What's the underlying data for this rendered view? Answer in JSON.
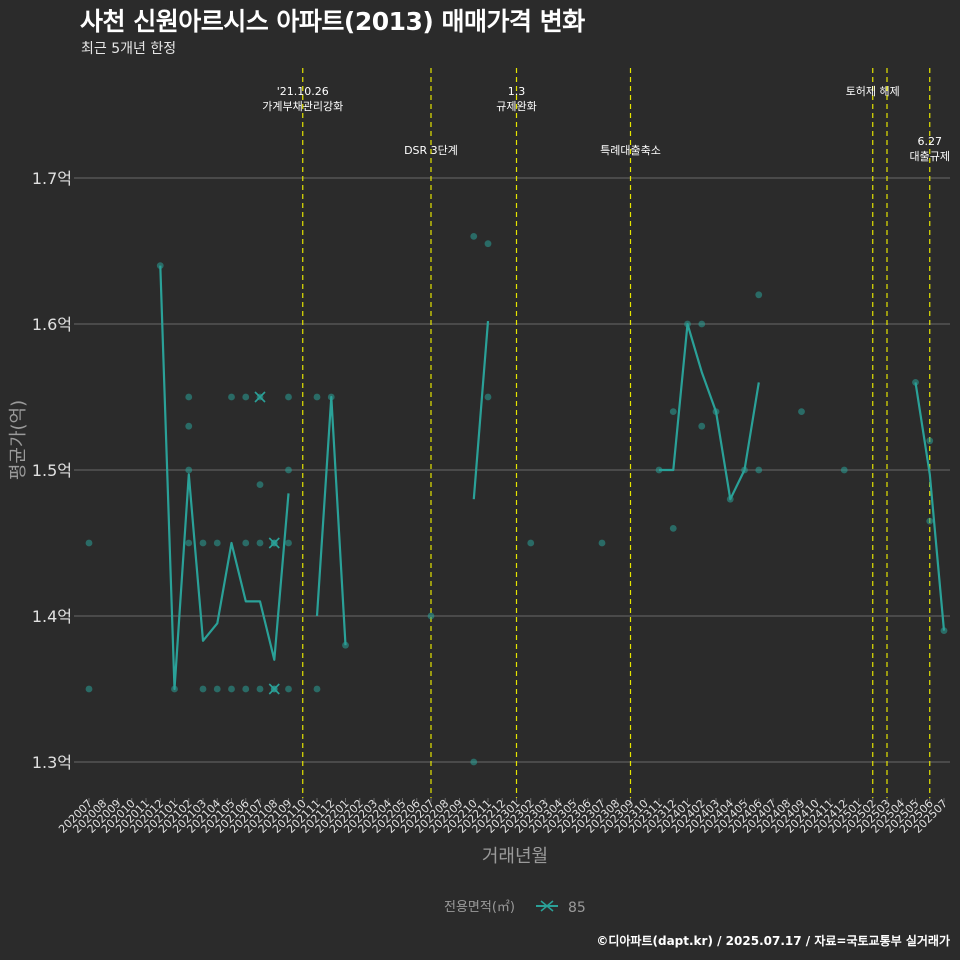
{
  "header": {
    "title": "사천 신원아르시스 아파트(2013) 매매가격 변화",
    "subtitle": "최근 5개년 한정"
  },
  "footer": {
    "caption": "©디아파트(dapt.kr) / 2025.07.17 / 자료=국토교통부 실거래가"
  },
  "colors": {
    "background": "#2b2b2b",
    "series": "#2aa198",
    "event_line": "#e5e500",
    "grid": "#6a6a6a",
    "axis_text": "#e0e0e0",
    "axis_title": "#9a9a9a"
  },
  "chart_data": {
    "type": "line",
    "xlabel": "거래년월",
    "ylabel": "평균가(억)",
    "ylim": [
      1.28,
      1.86
    ],
    "grid": "horizontal",
    "yticks": [
      {
        "value": 1.3,
        "label": "1.3억"
      },
      {
        "value": 1.4,
        "label": "1.4억"
      },
      {
        "value": 1.5,
        "label": "1.5억"
      },
      {
        "value": 1.6,
        "label": "1.6억"
      },
      {
        "value": 1.7,
        "label": "1.7억"
      }
    ],
    "categories": [
      "202007",
      "202008",
      "202009",
      "202010",
      "202011",
      "202012",
      "202101",
      "202102",
      "202103",
      "202104",
      "202105",
      "202106",
      "202107",
      "202108",
      "202109",
      "202110",
      "202111",
      "202112",
      "202201",
      "202202",
      "202203",
      "202204",
      "202205",
      "202206",
      "202207",
      "202208",
      "202209",
      "202210",
      "202211",
      "202212",
      "202301",
      "202302",
      "202303",
      "202304",
      "202305",
      "202306",
      "202307",
      "202308",
      "202309",
      "202310",
      "202311",
      "202312",
      "202401",
      "202402",
      "202403",
      "202404",
      "202405",
      "202406",
      "202407",
      "202408",
      "202409",
      "202410",
      "202411",
      "202412",
      "202501",
      "202502",
      "202503",
      "202504",
      "202505",
      "202506",
      "202507"
    ],
    "legend": {
      "title": "전용면적(㎡)",
      "entries": [
        "85"
      ],
      "position": "bottom"
    },
    "series": [
      {
        "name": "85",
        "line": [
          {
            "x": "202012",
            "y": 1.64
          },
          {
            "x": "202101",
            "y": 1.35
          },
          {
            "x": "202102",
            "y": 1.497
          },
          {
            "x": "202103",
            "y": 1.383
          },
          {
            "x": "202104",
            "y": 1.395
          },
          {
            "x": "202105",
            "y": 1.45
          },
          {
            "x": "202106",
            "y": 1.41
          },
          {
            "x": "202107",
            "y": 1.41
          },
          {
            "x": "202108",
            "y": 1.37
          },
          {
            "x": "202109",
            "y": 1.484
          },
          null,
          {
            "x": "202111",
            "y": 1.4
          },
          {
            "x": "202112",
            "y": 1.55
          },
          {
            "x": "202201",
            "y": 1.38
          },
          null,
          {
            "x": "202210",
            "y": 1.48
          },
          {
            "x": "202211",
            "y": 1.602
          },
          null,
          {
            "x": "202311",
            "y": 1.5
          },
          {
            "x": "202312",
            "y": 1.5
          },
          {
            "x": "202401",
            "y": 1.6
          },
          {
            "x": "202402",
            "y": 1.567
          },
          {
            "x": "202403",
            "y": 1.54
          },
          {
            "x": "202404",
            "y": 1.48
          },
          {
            "x": "202405",
            "y": 1.5
          },
          {
            "x": "202406",
            "y": 1.56
          },
          null,
          {
            "x": "202505",
            "y": 1.56
          },
          {
            "x": "202506",
            "y": 1.497
          },
          {
            "x": "202507",
            "y": 1.39
          }
        ],
        "points": [
          {
            "x": "202007",
            "y": 1.45
          },
          {
            "x": "202007",
            "y": 1.35
          },
          {
            "x": "202012",
            "y": 1.64
          },
          {
            "x": "202101",
            "y": 1.35
          },
          {
            "x": "202102",
            "y": 1.55
          },
          {
            "x": "202102",
            "y": 1.53
          },
          {
            "x": "202102",
            "y": 1.5
          },
          {
            "x": "202102",
            "y": 1.45
          },
          {
            "x": "202103",
            "y": 1.45
          },
          {
            "x": "202103",
            "y": 1.35
          },
          {
            "x": "202104",
            "y": 1.45
          },
          {
            "x": "202104",
            "y": 1.35
          },
          {
            "x": "202105",
            "y": 1.55
          },
          {
            "x": "202105",
            "y": 1.35
          },
          {
            "x": "202106",
            "y": 1.55
          },
          {
            "x": "202106",
            "y": 1.45
          },
          {
            "x": "202106",
            "y": 1.35
          },
          {
            "x": "202107",
            "y": 1.49
          },
          {
            "x": "202107",
            "y": 1.45
          },
          {
            "x": "202107",
            "y": 1.35
          },
          {
            "x": "202108",
            "y": 1.45
          },
          {
            "x": "202108",
            "y": 1.35
          },
          {
            "x": "202109",
            "y": 1.55
          },
          {
            "x": "202109",
            "y": 1.5
          },
          {
            "x": "202109",
            "y": 1.45
          },
          {
            "x": "202109",
            "y": 1.35
          },
          {
            "x": "202111",
            "y": 1.55
          },
          {
            "x": "202111",
            "y": 1.35
          },
          {
            "x": "202112",
            "y": 1.55
          },
          {
            "x": "202201",
            "y": 1.38
          },
          {
            "x": "202207",
            "y": 1.4
          },
          {
            "x": "202210",
            "y": 1.66
          },
          {
            "x": "202210",
            "y": 1.3
          },
          {
            "x": "202211",
            "y": 1.655
          },
          {
            "x": "202211",
            "y": 1.55
          },
          {
            "x": "202302",
            "y": 1.45
          },
          {
            "x": "202307",
            "y": 1.45
          },
          {
            "x": "202311",
            "y": 1.5
          },
          {
            "x": "202312",
            "y": 1.54
          },
          {
            "x": "202312",
            "y": 1.46
          },
          {
            "x": "202401",
            "y": 1.6
          },
          {
            "x": "202402",
            "y": 1.6
          },
          {
            "x": "202402",
            "y": 1.53
          },
          {
            "x": "202403",
            "y": 1.54
          },
          {
            "x": "202404",
            "y": 1.48
          },
          {
            "x": "202405",
            "y": 1.5
          },
          {
            "x": "202406",
            "y": 1.62
          },
          {
            "x": "202406",
            "y": 1.5
          },
          {
            "x": "202409",
            "y": 1.54
          },
          {
            "x": "202412",
            "y": 1.5
          },
          {
            "x": "202505",
            "y": 1.56
          },
          {
            "x": "202506",
            "y": 1.52
          },
          {
            "x": "202506",
            "y": 1.465
          },
          {
            "x": "202507",
            "y": 1.39
          }
        ],
        "cross_markers": [
          {
            "x": "202107",
            "y": 1.55
          },
          {
            "x": "202108",
            "y": 1.45
          },
          {
            "x": "202108",
            "y": 1.35
          }
        ]
      }
    ],
    "events": [
      {
        "x": "202110",
        "label": "'21.10.26\n가계부채관리강화",
        "level": 1
      },
      {
        "x": "202207",
        "label": "DSR 3단계",
        "level": 2
      },
      {
        "x": "202301",
        "label": "1.3\n규제완화",
        "level": 1
      },
      {
        "x": "202309",
        "label": "특례대출축소",
        "level": 2
      },
      {
        "x": "202502",
        "label": "토허제 해제",
        "level": 1
      },
      {
        "x": "202503",
        "label": "",
        "level": 1
      },
      {
        "x": "202506",
        "label": "6.27\n대출규제",
        "level": 3
      }
    ]
  }
}
